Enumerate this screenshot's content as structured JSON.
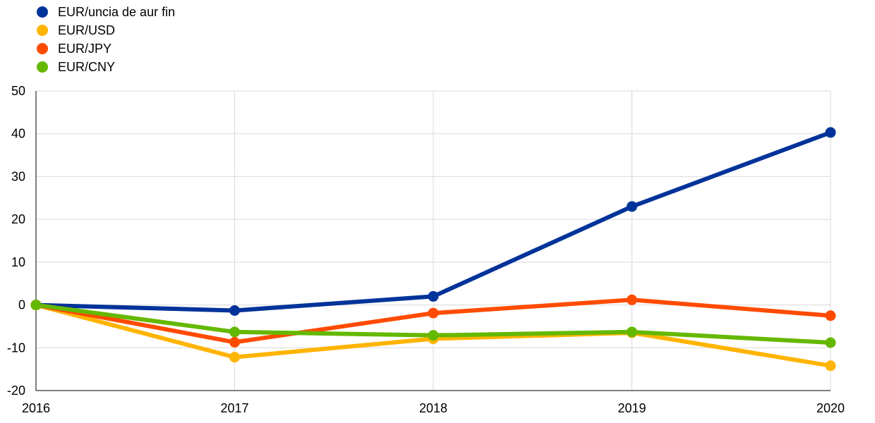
{
  "chart_data": {
    "type": "line",
    "title": "",
    "xlabel": "",
    "ylabel": "",
    "categories": [
      "2016",
      "2017",
      "2018",
      "2019",
      "2020"
    ],
    "ylim": [
      -20,
      50
    ],
    "yticks": [
      50,
      40,
      30,
      20,
      10,
      0,
      -10,
      -20
    ],
    "grid": true,
    "legend_position": "top-left",
    "series": [
      {
        "name": "EUR/uncia de aur fin",
        "color": "#003399",
        "values": [
          0,
          -1.3,
          2.0,
          23.0,
          40.3
        ]
      },
      {
        "name": "EUR/USD",
        "color": "#FFB400",
        "values": [
          0,
          -12.2,
          -7.9,
          -6.5,
          -14.2
        ]
      },
      {
        "name": "EUR/JPY",
        "color": "#FF4B00",
        "values": [
          0,
          -8.7,
          -1.9,
          1.2,
          -2.5
        ]
      },
      {
        "name": "EUR/CNY",
        "color": "#65B800",
        "values": [
          0,
          -6.3,
          -7.1,
          -6.3,
          -8.8
        ]
      }
    ]
  }
}
